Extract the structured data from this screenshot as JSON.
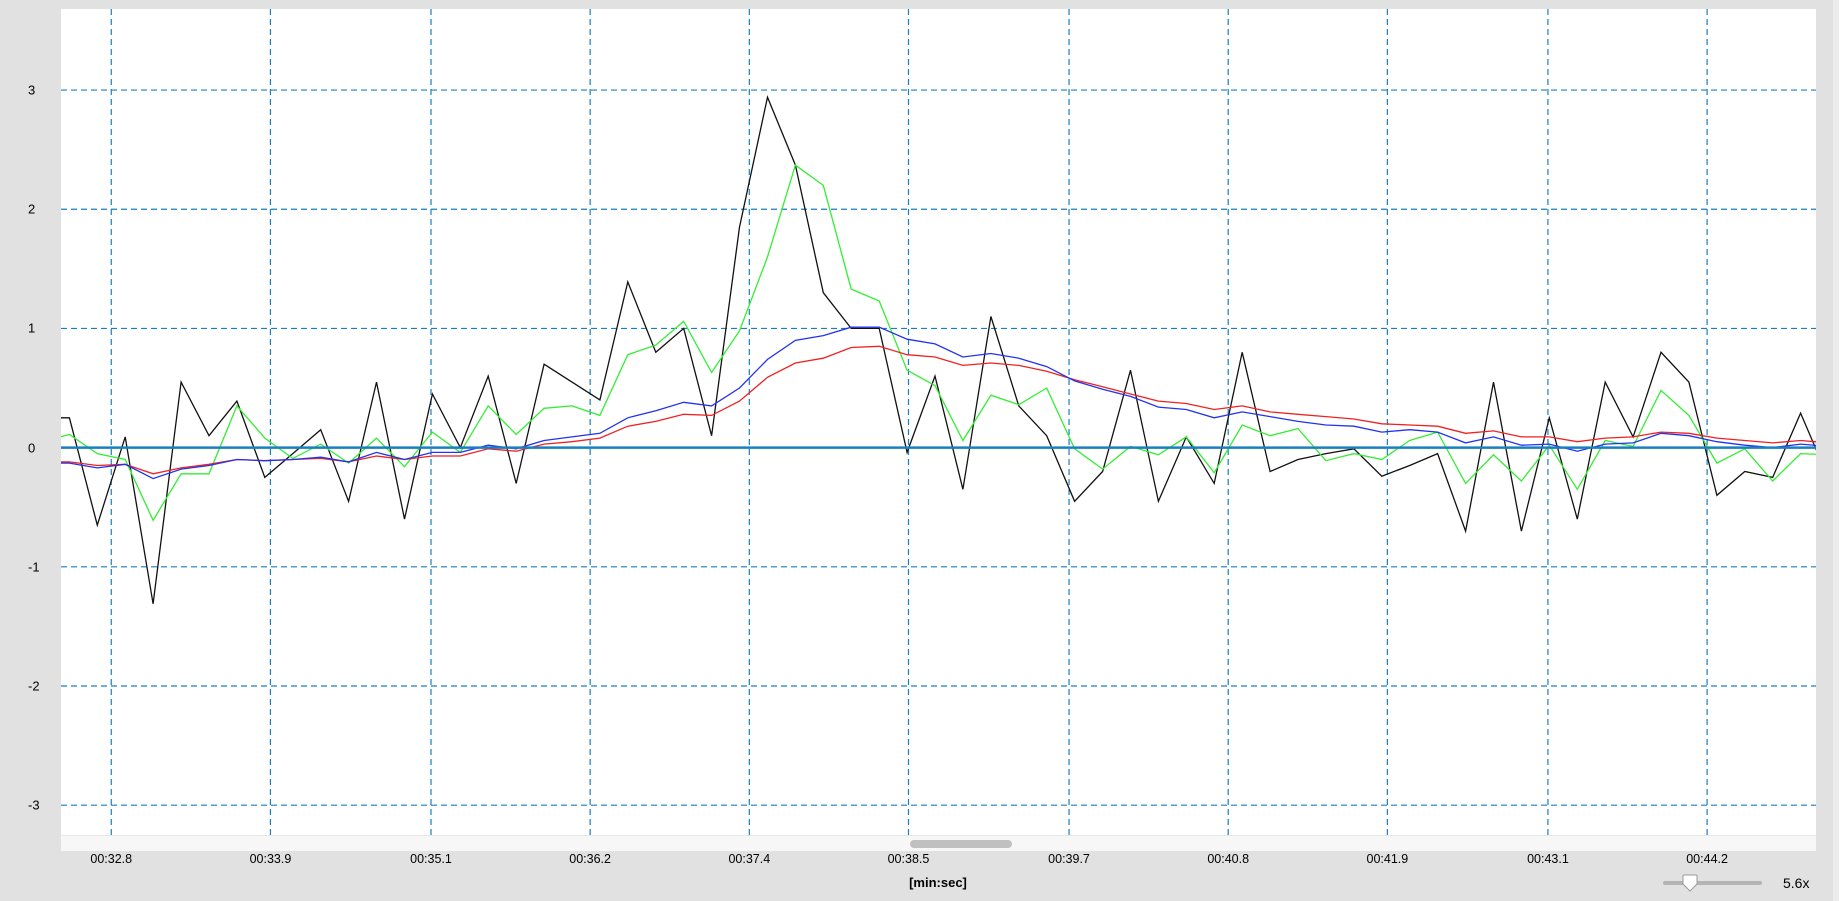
{
  "chart_data": {
    "type": "line",
    "title": "",
    "xlabel": "[min:sec]",
    "ylabel": "",
    "xlim": [
      32.44,
      45.01
    ],
    "ylim": [
      -3.25,
      3.68
    ],
    "grid": true,
    "legend": "none",
    "xticks": [
      {
        "value": 32.8,
        "label": "00:32.8"
      },
      {
        "value": 33.94,
        "label": "00:33.9"
      },
      {
        "value": 35.09,
        "label": "00:35.1"
      },
      {
        "value": 36.23,
        "label": "00:36.2"
      },
      {
        "value": 37.37,
        "label": "00:37.4"
      },
      {
        "value": 38.51,
        "label": "00:38.5"
      },
      {
        "value": 39.66,
        "label": "00:39.7"
      },
      {
        "value": 40.8,
        "label": "00:40.8"
      },
      {
        "value": 41.94,
        "label": "00:41.9"
      },
      {
        "value": 43.09,
        "label": "00:43.1"
      },
      {
        "value": 44.23,
        "label": "00:44.2"
      }
    ],
    "yticks": [
      3,
      2,
      1,
      0,
      -1,
      -2,
      -3
    ],
    "x_start": 32.3,
    "x_step": 0.2,
    "series": [
      {
        "color": "#111111",
        "values": [
          0.25,
          0.25,
          -0.65,
          0.09,
          -1.31,
          0.55,
          0.1,
          0.39,
          -0.25,
          -0.05,
          0.15,
          -0.45,
          0.55,
          -0.6,
          0.45,
          0.0,
          0.6,
          -0.3,
          0.7,
          0.55,
          0.4,
          1.39,
          0.8,
          1.0,
          0.1,
          1.85,
          2.94,
          2.37,
          1.3,
          1.0,
          1.0,
          -0.04,
          0.6,
          -0.35,
          1.1,
          0.35,
          0.1,
          -0.45,
          -0.2,
          0.65,
          -0.45,
          0.09,
          -0.3,
          0.8,
          -0.2,
          -0.1,
          -0.05,
          -0.01,
          -0.24,
          -0.15,
          -0.05,
          -0.7,
          0.55,
          -0.7,
          0.25,
          -0.6,
          0.55,
          0.09,
          0.8,
          0.55,
          -0.4,
          -0.2,
          -0.25,
          0.29,
          -0.26
        ]
      },
      {
        "color": "#33ee33",
        "values": [
          0.05,
          0.11,
          -0.05,
          -0.1,
          -0.61,
          -0.22,
          -0.22,
          0.35,
          0.08,
          -0.09,
          0.03,
          -0.13,
          0.08,
          -0.16,
          0.13,
          -0.04,
          0.35,
          0.11,
          0.33,
          0.35,
          0.27,
          0.78,
          0.86,
          1.06,
          0.63,
          0.98,
          1.6,
          2.37,
          2.2,
          1.33,
          1.23,
          0.65,
          0.52,
          0.06,
          0.44,
          0.36,
          0.5,
          -0.01,
          -0.18,
          0.01,
          -0.06,
          0.09,
          -0.21,
          0.19,
          0.1,
          0.16,
          -0.11,
          -0.05,
          -0.1,
          0.06,
          0.13,
          -0.3,
          -0.06,
          -0.28,
          0.02,
          -0.35,
          0.06,
          0.01,
          0.48,
          0.27,
          -0.13,
          -0.01,
          -0.28,
          -0.05,
          -0.06
        ]
      },
      {
        "color": "#ee2222",
        "values": [
          -0.12,
          -0.12,
          -0.15,
          -0.14,
          -0.22,
          -0.17,
          -0.14,
          -0.1,
          -0.11,
          -0.1,
          -0.09,
          -0.12,
          -0.07,
          -0.1,
          -0.07,
          -0.07,
          -0.01,
          -0.03,
          0.03,
          0.05,
          0.08,
          0.18,
          0.22,
          0.28,
          0.27,
          0.39,
          0.59,
          0.71,
          0.75,
          0.84,
          0.85,
          0.78,
          0.76,
          0.69,
          0.71,
          0.69,
          0.64,
          0.57,
          0.51,
          0.45,
          0.39,
          0.37,
          0.32,
          0.35,
          0.3,
          0.28,
          0.26,
          0.24,
          0.2,
          0.19,
          0.18,
          0.12,
          0.14,
          0.09,
          0.09,
          0.05,
          0.08,
          0.09,
          0.13,
          0.12,
          0.08,
          0.06,
          0.04,
          0.06,
          0.04
        ]
      },
      {
        "color": "#2233ee",
        "values": [
          -0.13,
          -0.13,
          -0.17,
          -0.14,
          -0.26,
          -0.18,
          -0.15,
          -0.1,
          -0.11,
          -0.1,
          -0.08,
          -0.12,
          -0.04,
          -0.1,
          -0.04,
          -0.04,
          0.02,
          -0.01,
          0.06,
          0.09,
          0.12,
          0.25,
          0.31,
          0.38,
          0.35,
          0.5,
          0.74,
          0.9,
          0.94,
          1.01,
          1.01,
          0.91,
          0.87,
          0.76,
          0.79,
          0.75,
          0.68,
          0.56,
          0.49,
          0.43,
          0.34,
          0.32,
          0.25,
          0.3,
          0.26,
          0.22,
          0.19,
          0.18,
          0.13,
          0.15,
          0.13,
          0.04,
          0.09,
          0.02,
          0.03,
          -0.03,
          0.03,
          0.04,
          0.12,
          0.1,
          0.05,
          0.02,
          0.0,
          0.03,
          0.01
        ]
      }
    ],
    "grid_color": "#1a7fc0",
    "zero_line_color": "#1a7fc0"
  },
  "zoom": {
    "label": "5.6x",
    "level_fraction": 0.27
  },
  "scroll": {
    "thumb_start_fraction": 0.484,
    "thumb_size_fraction": 0.058
  }
}
